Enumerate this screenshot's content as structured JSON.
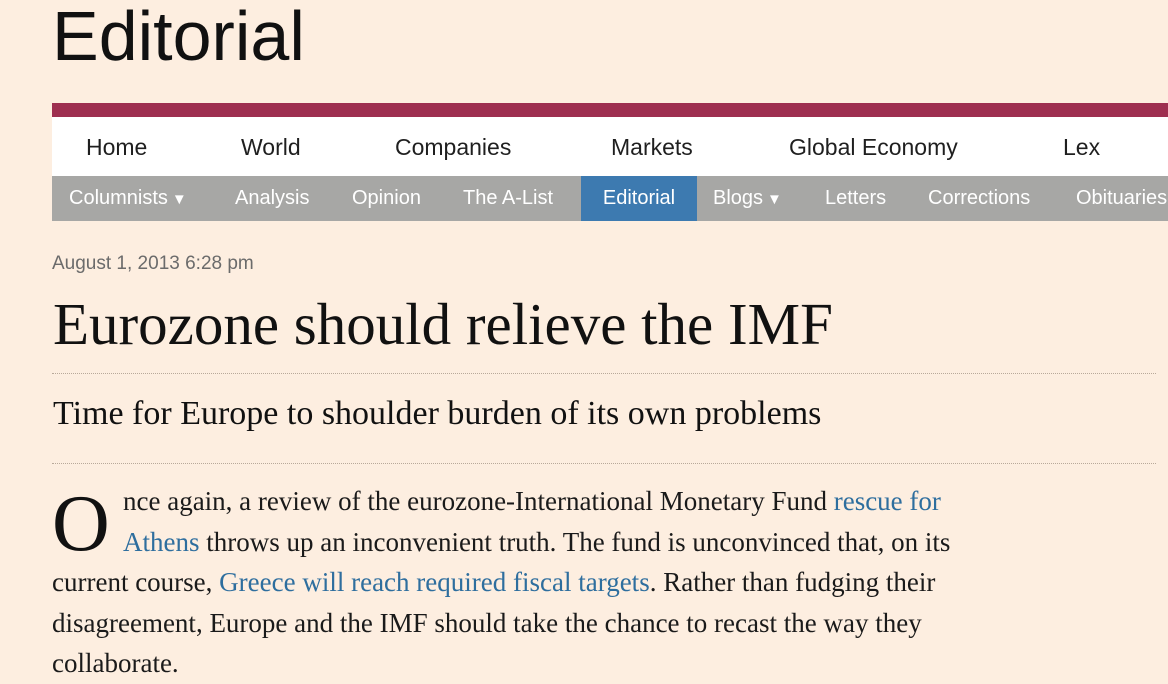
{
  "section_title": "Editorial",
  "primary_nav": [
    "Home",
    "World",
    "Companies",
    "Markets",
    "Global Economy",
    "Lex"
  ],
  "secondary_nav": [
    {
      "label": "Columnists",
      "caret": "▼"
    },
    {
      "label": "Analysis"
    },
    {
      "label": "Opinion"
    },
    {
      "label": "The A-List"
    },
    {
      "label": "Editorial",
      "active": true
    },
    {
      "label": "Blogs",
      "caret": "▼"
    },
    {
      "label": "Letters"
    },
    {
      "label": "Corrections"
    },
    {
      "label": "Obituaries"
    }
  ],
  "article": {
    "date": "August 1, 2013 6:28 pm",
    "headline": "Eurozone should relieve the IMF",
    "standfirst": "Time for Europe to shoulder burden of its own problems",
    "dropcap": "O",
    "lines": {
      "l1_text": "nce again, a review of the eurozone-International Monetary Fund ",
      "l1_link": "rescue for",
      "l2_link": "Athens",
      "l2_text": " throws up an inconvenient truth. The fund is unconvinced that, on its",
      "l3_text_a": "current course, ",
      "l3_link": "Greece will reach required fiscal targets",
      "l3_text_b": ". Rather than fudging their",
      "l4_text": "disagreement, Europe and the IMF should take the chance to recast the way they",
      "l5_text": "collaborate."
    }
  },
  "colors": {
    "page_background": "#fdeee0",
    "brand_rule": "#9e2f50",
    "secondary_nav_bg": "#a7a7a5",
    "active_tab_bg": "#3d7ab0",
    "link": "#2e6e9e"
  }
}
